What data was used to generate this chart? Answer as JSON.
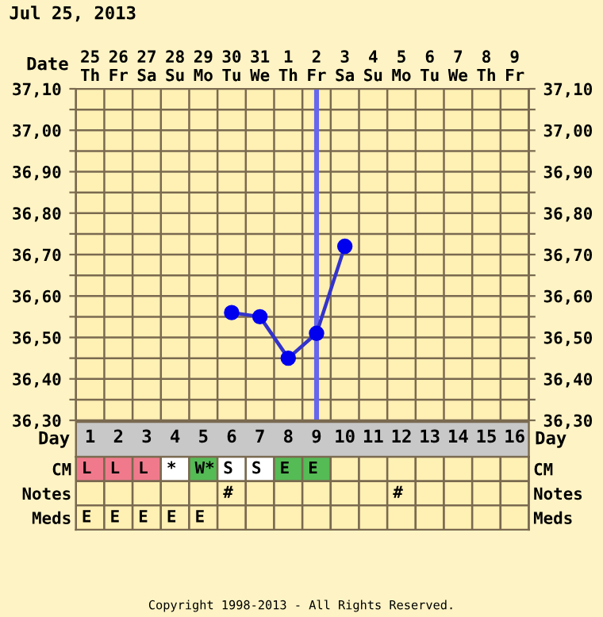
{
  "chart_data": [
    {
      "type": "line",
      "title": "Jul 25, 2013",
      "xlabel": "Date",
      "x2label": "Day",
      "categories": [
        "25\nTh",
        "26\nFr",
        "27\nSa",
        "28\nSu",
        "29\nMo",
        "30\nTu",
        "31\nWe",
        "1\nTh",
        "2\nFr",
        "3\nSa",
        "4\nSu",
        "5\nMo",
        "6\nTu",
        "7\nWe",
        "8\nTh",
        "9\nFr"
      ],
      "series": [
        {
          "color": "#0000ee",
          "values": [
            null,
            null,
            null,
            null,
            null,
            36.56,
            36.55,
            36.45,
            36.51,
            36.72,
            null,
            null,
            null,
            null,
            null,
            null
          ]
        }
      ],
      "x2lim": [
        0.5,
        16.5
      ],
      "x2ticks": [
        1,
        2,
        3,
        4,
        5,
        6,
        7,
        8,
        9,
        10,
        11,
        12,
        13,
        14,
        15,
        16
      ],
      "ylim": [
        36.3,
        37.1
      ],
      "yticks": [
        {
          "value": 36.3,
          "label": "36,30"
        },
        {
          "value": 36.35,
          "label": null
        },
        {
          "value": 36.4,
          "label": "36,40"
        },
        {
          "value": 36.45,
          "label": null
        },
        {
          "value": 36.5,
          "label": "36,50"
        },
        {
          "value": 36.55,
          "label": null
        },
        {
          "value": 36.6,
          "label": "36,60"
        },
        {
          "value": 36.65,
          "label": null
        },
        {
          "value": 36.7,
          "label": "36,70"
        },
        {
          "value": 36.75,
          "label": null
        },
        {
          "value": 36.8,
          "label": "36,80"
        },
        {
          "value": 36.85,
          "label": null
        },
        {
          "value": 36.9,
          "label": "36,90"
        },
        {
          "value": 36.95,
          "label": null
        },
        {
          "value": 37.0,
          "label": "37,00"
        },
        {
          "value": 37.05,
          "label": null
        },
        {
          "value": 37.1,
          "label": "37,10"
        }
      ],
      "y2lim": [
        36.3,
        37.1
      ],
      "y2ticks": [
        {
          "value": 36.3,
          "label": "36,30"
        },
        {
          "value": 36.35,
          "label": null
        },
        {
          "value": 36.4,
          "label": "36,40"
        },
        {
          "value": 36.45,
          "label": null
        },
        {
          "value": 36.5,
          "label": "36,50"
        },
        {
          "value": 36.55,
          "label": null
        },
        {
          "value": 36.6,
          "label": "36,60"
        },
        {
          "value": 36.65,
          "label": null
        },
        {
          "value": 36.7,
          "label": "36,70"
        },
        {
          "value": 36.75,
          "label": null
        },
        {
          "value": 36.8,
          "label": "36,80"
        },
        {
          "value": 36.85,
          "label": null
        },
        {
          "value": 36.9,
          "label": "36,90"
        },
        {
          "value": 36.95,
          "label": null
        },
        {
          "value": 37.0,
          "label": "37,00"
        },
        {
          "value": 37.05,
          "label": null
        },
        {
          "value": 37.1,
          "label": "37,10"
        }
      ],
      "ref_lines": [
        {
          "axis": "x",
          "value": "2\nFr",
          "color": "#6666ee"
        }
      ],
      "grid": true,
      "marker": "circle",
      "line_style": "solid",
      "legend": false
    },
    {
      "type": "other",
      "y_categories": [
        "CM",
        "Notes",
        "Meds"
      ],
      "y2_categories": [
        "CM",
        "Notes",
        "Meds"
      ],
      "cell_labels": [
        [
          "L",
          "L",
          "L",
          "*",
          "W*",
          "S",
          "S",
          "E",
          "E",
          null,
          null,
          null,
          null,
          null,
          null,
          null
        ],
        [
          null,
          null,
          null,
          null,
          null,
          "#",
          null,
          null,
          null,
          null,
          null,
          "#",
          null,
          null,
          null,
          null
        ],
        [
          "E",
          "E",
          "E",
          "E",
          "E",
          null,
          null,
          null,
          null,
          null,
          null,
          null,
          null,
          null,
          null,
          null
        ]
      ],
      "colors": [
        [
          "#f07a8c",
          "#f07a8c",
          "#f07a8c",
          "#ffffff",
          "#55bb55",
          "#ffffff",
          "#ffffff",
          "#55bb55",
          "#55bb55",
          null,
          null,
          null,
          null,
          null,
          null,
          null
        ],
        [
          null,
          null,
          null,
          null,
          null,
          null,
          null,
          null,
          null,
          null,
          null,
          null,
          null,
          null,
          null,
          null
        ],
        [
          null,
          null,
          null,
          null,
          null,
          null,
          null,
          null,
          null,
          null,
          null,
          null,
          null,
          null,
          null,
          null
        ]
      ],
      "annotations": [
        "Copyright 1998-2013 - All Rights Reserved."
      ]
    }
  ]
}
